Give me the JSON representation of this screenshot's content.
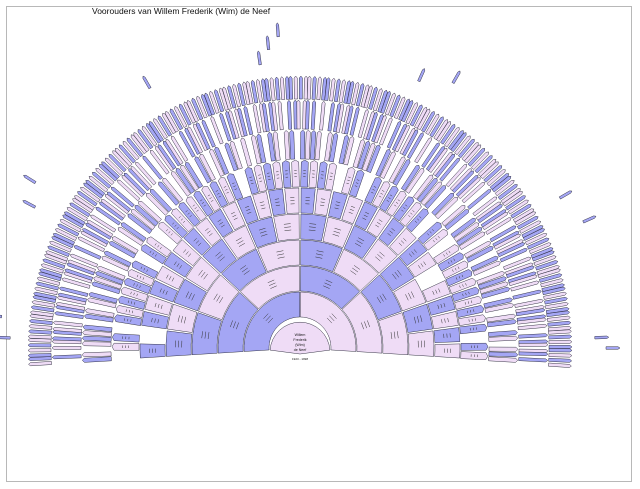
{
  "title": "Voorouders van Willem Frederik (Wim) de Neef",
  "root": {
    "name_lines": [
      "Willem",
      "Frederik",
      "(Wim)",
      "de Neef"
    ],
    "dates": "1923 - 1998"
  },
  "colors": {
    "male_fill": "#a4a6f4",
    "female_fill": "#efdcf6",
    "outline": "#222233",
    "frame": "#b8b8b8"
  },
  "chart_data": {
    "type": "fan chart (ancestor pedigree)",
    "root_person": "Willem Frederik (Wim) de Neef",
    "root_dates": "1923 - 1998",
    "generations_shown": 10
  }
}
